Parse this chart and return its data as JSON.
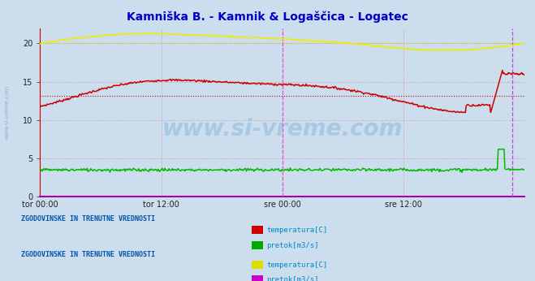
{
  "title": "Kamniška B. - Kamnik & Logaščica - Logatec",
  "title_color": "#0000cc",
  "title_fontsize": 10,
  "bg_color": "#ccdded",
  "plot_bg_color": "#ccdded",
  "watermark": "www.si-vreme.com",
  "watermark_color": "#5599cc",
  "watermark_alpha": 0.3,
  "ylim": [
    0,
    22
  ],
  "yticks": [
    0,
    5,
    10,
    15,
    20
  ],
  "xtick_labels": [
    "tor 00:00",
    "tor 12:00",
    "sre 00:00",
    "sre 12:00"
  ],
  "xtick_positions": [
    0,
    0.25,
    0.5,
    0.75
  ],
  "grid_color_h": "#dd8899",
  "grid_color_v": "#dd8899",
  "vline_mid_color": "#ff44cc",
  "vline_end_color": "#cc44cc",
  "spine_bottom_color": "#aa00aa",
  "spine_left_color": "#cc0000",
  "legend1_title": "ZGODOVINSKE IN TRENUTNE VREDNOSTI",
  "legend1_items": [
    {
      "label": "temperatura[C]",
      "color": "#cc0000"
    },
    {
      "label": "pretok[m3/s]",
      "color": "#00aa00"
    }
  ],
  "legend2_title": "ZGODOVINSKE IN TRENUTNE VREDNOSTI",
  "legend2_items": [
    {
      "label": "temperatura[C]",
      "color": "#dddd00"
    },
    {
      "label": "pretok[m3/s]",
      "color": "#cc00cc"
    }
  ],
  "legend_title_color": "#0055aa",
  "legend_text_color": "#0088cc",
  "red_avg": 13.2,
  "yellow_avg": 20.1,
  "n_points": 576
}
